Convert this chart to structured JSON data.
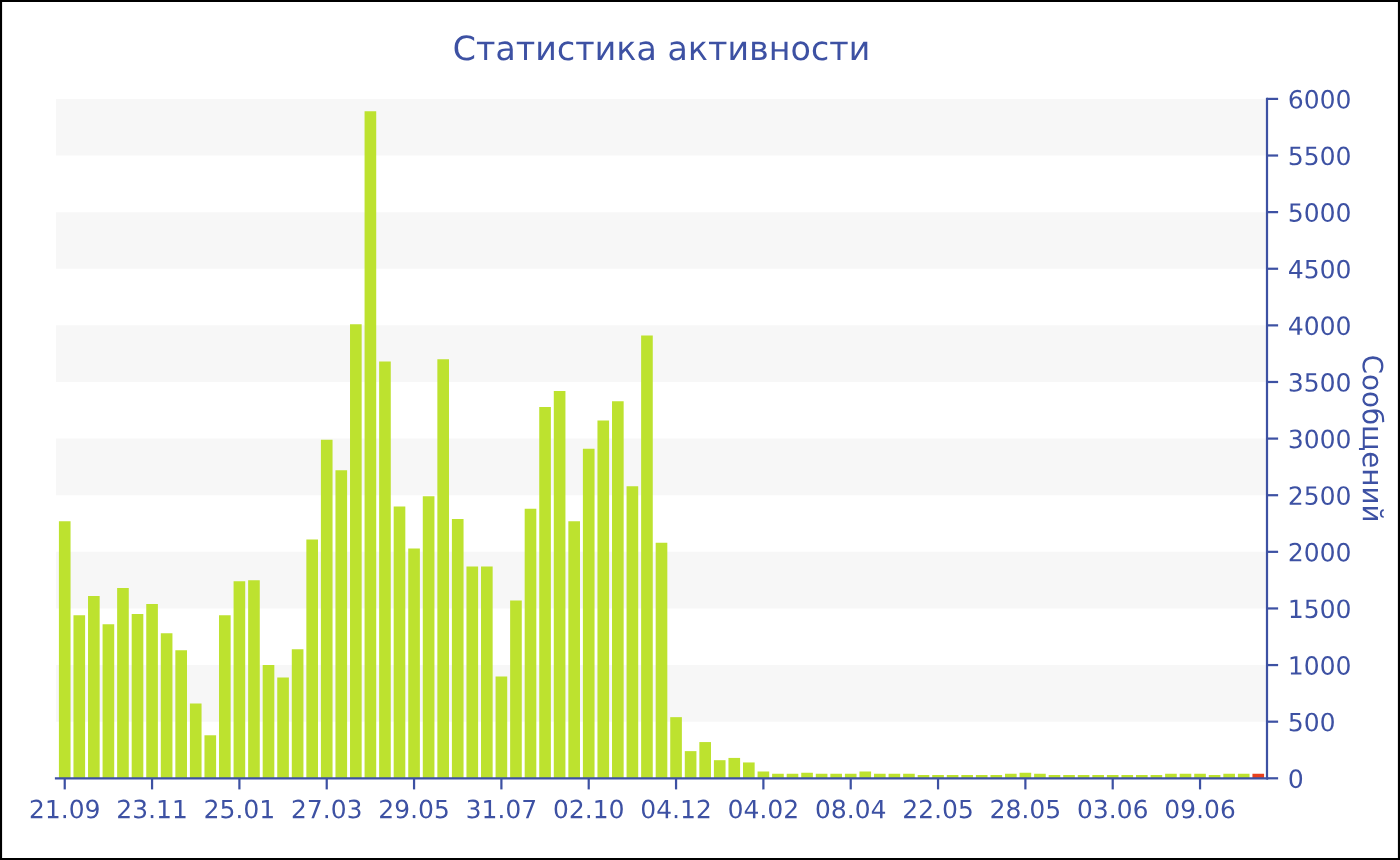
{
  "chart_data": {
    "type": "bar",
    "title": "Статистика активности",
    "ylabel": "Сообщений",
    "categories": [
      "21.09",
      null,
      null,
      null,
      null,
      null,
      "23.11",
      null,
      null,
      null,
      null,
      null,
      "25.01",
      null,
      null,
      null,
      null,
      null,
      "27.03",
      null,
      null,
      null,
      null,
      null,
      "29.05",
      null,
      null,
      null,
      null,
      null,
      "31.07",
      null,
      null,
      null,
      null,
      null,
      "02.10",
      null,
      null,
      null,
      null,
      null,
      "04.12",
      null,
      null,
      null,
      null,
      null,
      "04.02",
      null,
      null,
      null,
      null,
      null,
      "08.04",
      null,
      null,
      null,
      null,
      null,
      "22.05",
      null,
      null,
      null,
      null,
      null,
      "28.05",
      null,
      null,
      null,
      null,
      null,
      "03.06",
      null,
      null,
      null,
      null,
      null,
      "09.06",
      null,
      null,
      null,
      null
    ],
    "values": [
      2270,
      1440,
      1610,
      1360,
      1680,
      1450,
      1540,
      1280,
      1130,
      660,
      380,
      1440,
      1740,
      1750,
      1000,
      890,
      1140,
      2110,
      2990,
      2720,
      4010,
      5890,
      3680,
      2400,
      2030,
      2490,
      3700,
      2290,
      1870,
      1870,
      900,
      1570,
      2380,
      3280,
      3420,
      2270,
      2910,
      3160,
      3330,
      2580,
      3910,
      2080,
      540,
      240,
      320,
      160,
      180,
      140,
      60,
      40,
      40,
      50,
      40,
      40,
      40,
      60,
      40,
      40,
      40,
      30,
      30,
      30,
      30,
      30,
      30,
      40,
      50,
      40,
      30,
      30,
      30,
      30,
      30,
      30,
      30,
      30,
      40,
      40,
      40,
      30,
      40,
      40,
      40
    ],
    "colors": [
      "#bde22f",
      "#bde22f",
      "#bde22f",
      "#bde22f",
      "#bde22f",
      "#bde22f",
      "#bde22f",
      "#bde22f",
      "#bde22f",
      "#bde22f",
      "#bde22f",
      "#bde22f",
      "#bde22f",
      "#bde22f",
      "#bde22f",
      "#bde22f",
      "#bde22f",
      "#bde22f",
      "#bde22f",
      "#bde22f",
      "#bde22f",
      "#bde22f",
      "#bde22f",
      "#bde22f",
      "#bde22f",
      "#bde22f",
      "#bde22f",
      "#bde22f",
      "#bde22f",
      "#bde22f",
      "#bde22f",
      "#bde22f",
      "#bde22f",
      "#bde22f",
      "#bde22f",
      "#bde22f",
      "#bde22f",
      "#bde22f",
      "#bde22f",
      "#bde22f",
      "#bde22f",
      "#bde22f",
      "#bde22f",
      "#bde22f",
      "#bde22f",
      "#bde22f",
      "#bde22f",
      "#bde22f",
      "#bde22f",
      "#bde22f",
      "#bde22f",
      "#bde22f",
      "#bde22f",
      "#bde22f",
      "#bde22f",
      "#bde22f",
      "#bde22f",
      "#bde22f",
      "#bde22f",
      "#bde22f",
      "#bde22f",
      "#bde22f",
      "#bde22f",
      "#bde22f",
      "#bde22f",
      "#bde22f",
      "#bde22f",
      "#bde22f",
      "#bde22f",
      "#bde22f",
      "#bde22f",
      "#bde22f",
      "#bde22f",
      "#bde22f",
      "#bde22f",
      "#bde22f",
      "#bde22f",
      "#bde22f",
      "#bde22f",
      "#bde22f",
      "#bde22f",
      "#bde22f",
      "#e8401c"
    ],
    "ylim": [
      0,
      6000
    ],
    "yticks": [
      0,
      500,
      1000,
      1500,
      2000,
      2500,
      3000,
      3500,
      4000,
      4500,
      5000,
      5500,
      6000
    ],
    "bands": [
      {
        "axis": "y",
        "from": 500,
        "to": 1000,
        "color": "#f7f7f7"
      },
      {
        "axis": "y",
        "from": 1500,
        "to": 2000,
        "color": "#f7f7f7"
      },
      {
        "axis": "y",
        "from": 2500,
        "to": 3000,
        "color": "#f7f7f7"
      },
      {
        "axis": "y",
        "from": 3500,
        "to": 4000,
        "color": "#f7f7f7"
      },
      {
        "axis": "y",
        "from": 4500,
        "to": 5000,
        "color": "#f7f7f7"
      },
      {
        "axis": "y",
        "from": 5500,
        "to": 6000,
        "color": "#f7f7f7"
      }
    ],
    "grid": false,
    "legend": false
  }
}
